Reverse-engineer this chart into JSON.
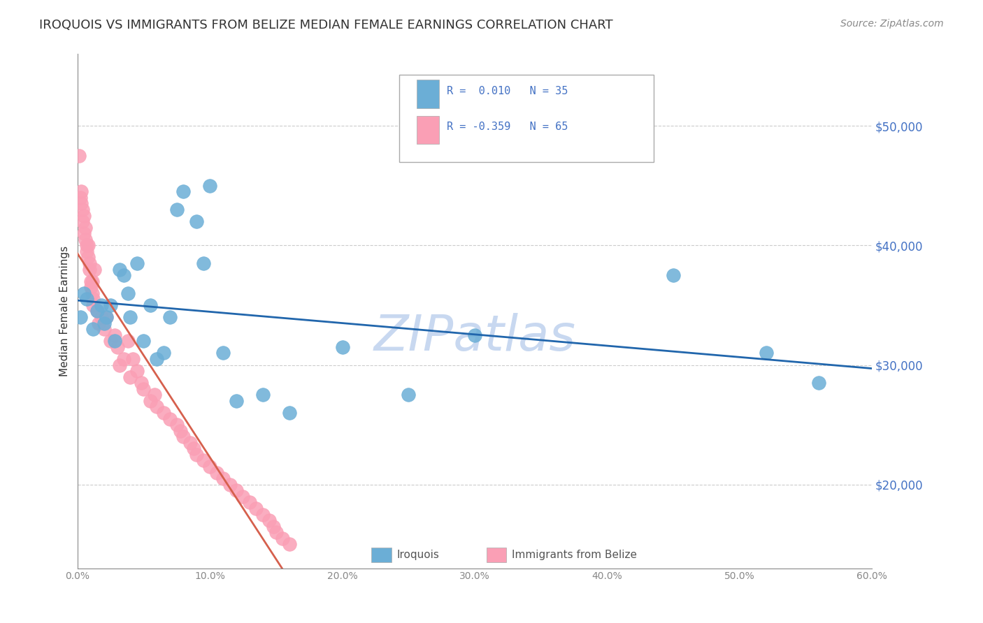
{
  "title": "IROQUOIS VS IMMIGRANTS FROM BELIZE MEDIAN FEMALE EARNINGS CORRELATION CHART",
  "source": "Source: ZipAtlas.com",
  "ylabel": "Median Female Earnings",
  "ytick_labels": [
    "$20,000",
    "$30,000",
    "$40,000",
    "$50,000"
  ],
  "ytick_values": [
    20000,
    30000,
    40000,
    50000
  ],
  "xmin": 0.0,
  "xmax": 0.6,
  "ymin": 13000,
  "ymax": 56000,
  "iroquois_color": "#6baed6",
  "belize_color": "#fa9fb5",
  "trend_iroquois_color": "#2166ac",
  "trend_belize_color": "#d6604d",
  "background_color": "#ffffff",
  "title_color": "#333333",
  "axis_label_color": "#333333",
  "watermark_color": "#c8d8f0",
  "iroquois_x": [
    0.002,
    0.005,
    0.007,
    0.012,
    0.015,
    0.018,
    0.02,
    0.022,
    0.025,
    0.028,
    0.032,
    0.035,
    0.038,
    0.04,
    0.045,
    0.05,
    0.055,
    0.06,
    0.065,
    0.07,
    0.075,
    0.08,
    0.09,
    0.095,
    0.1,
    0.11,
    0.12,
    0.14,
    0.16,
    0.2,
    0.25,
    0.3,
    0.45,
    0.52,
    0.56
  ],
  "iroquois_y": [
    34000,
    36000,
    35500,
    33000,
    34500,
    35000,
    33500,
    34000,
    35000,
    32000,
    38000,
    37500,
    36000,
    34000,
    38500,
    32000,
    35000,
    30500,
    31000,
    34000,
    43000,
    44500,
    42000,
    38500,
    45000,
    31000,
    27000,
    27500,
    26000,
    31500,
    27500,
    32500,
    37500,
    31000,
    28500
  ],
  "belize_x": [
    0.001,
    0.002,
    0.003,
    0.003,
    0.004,
    0.004,
    0.005,
    0.005,
    0.006,
    0.006,
    0.007,
    0.007,
    0.008,
    0.008,
    0.009,
    0.009,
    0.01,
    0.01,
    0.011,
    0.011,
    0.012,
    0.012,
    0.013,
    0.015,
    0.016,
    0.018,
    0.02,
    0.022,
    0.025,
    0.028,
    0.03,
    0.032,
    0.035,
    0.038,
    0.04,
    0.042,
    0.045,
    0.048,
    0.05,
    0.055,
    0.058,
    0.06,
    0.065,
    0.07,
    0.075,
    0.078,
    0.08,
    0.085,
    0.088,
    0.09,
    0.095,
    0.1,
    0.105,
    0.11,
    0.115,
    0.12,
    0.125,
    0.13,
    0.135,
    0.14,
    0.145,
    0.148,
    0.15,
    0.155,
    0.16
  ],
  "belize_y": [
    47500,
    44000,
    44500,
    43500,
    43000,
    42000,
    42500,
    41000,
    40500,
    41500,
    40000,
    39500,
    40000,
    39000,
    38500,
    38000,
    37000,
    36500,
    37000,
    36000,
    35500,
    35000,
    38000,
    34500,
    33500,
    34000,
    33000,
    34000,
    32000,
    32500,
    31500,
    30000,
    30500,
    32000,
    29000,
    30500,
    29500,
    28500,
    28000,
    27000,
    27500,
    26500,
    26000,
    25500,
    25000,
    24500,
    24000,
    23500,
    23000,
    22500,
    22000,
    21500,
    21000,
    20500,
    20000,
    19500,
    19000,
    18500,
    18000,
    17500,
    17000,
    16500,
    16000,
    15500,
    15000
  ]
}
